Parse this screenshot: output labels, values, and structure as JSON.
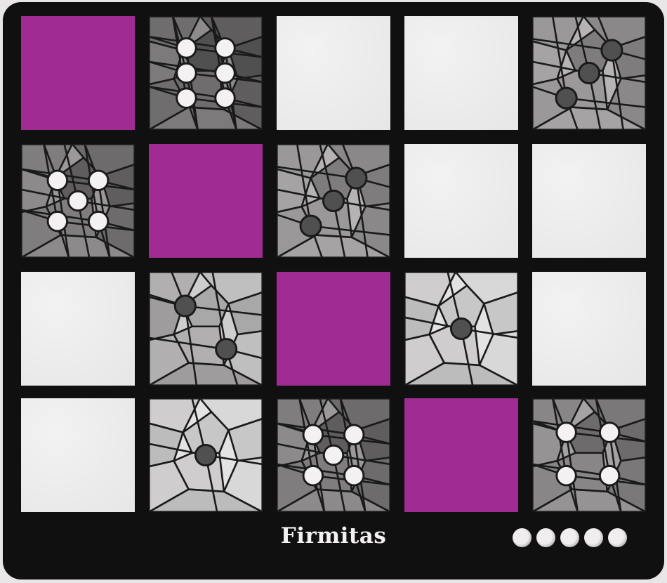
{
  "card": {
    "title": "Firmitas",
    "difficulty": 5,
    "colors": {
      "frame": "#111011",
      "magenta": "#a02c93",
      "blank": "#eeeded",
      "pip_light": "#f3f1f1",
      "pip_dark": "#505050"
    },
    "grid": [
      [
        {
          "type": "color",
          "color": "magenta"
        },
        {
          "type": "shade",
          "value": 6
        },
        {
          "type": "blank"
        },
        {
          "type": "blank"
        },
        {
          "type": "shade",
          "value": 3
        }
      ],
      [
        {
          "type": "shade",
          "value": 5
        },
        {
          "type": "color",
          "color": "magenta"
        },
        {
          "type": "shade",
          "value": 3
        },
        {
          "type": "blank"
        },
        {
          "type": "blank"
        }
      ],
      [
        {
          "type": "blank"
        },
        {
          "type": "shade",
          "value": 2
        },
        {
          "type": "color",
          "color": "magenta"
        },
        {
          "type": "shade",
          "value": 1
        },
        {
          "type": "blank"
        }
      ],
      [
        {
          "type": "blank"
        },
        {
          "type": "shade",
          "value": 1
        },
        {
          "type": "shade",
          "value": 5
        },
        {
          "type": "color",
          "color": "magenta"
        },
        {
          "type": "shade",
          "value": 4
        }
      ]
    ]
  }
}
